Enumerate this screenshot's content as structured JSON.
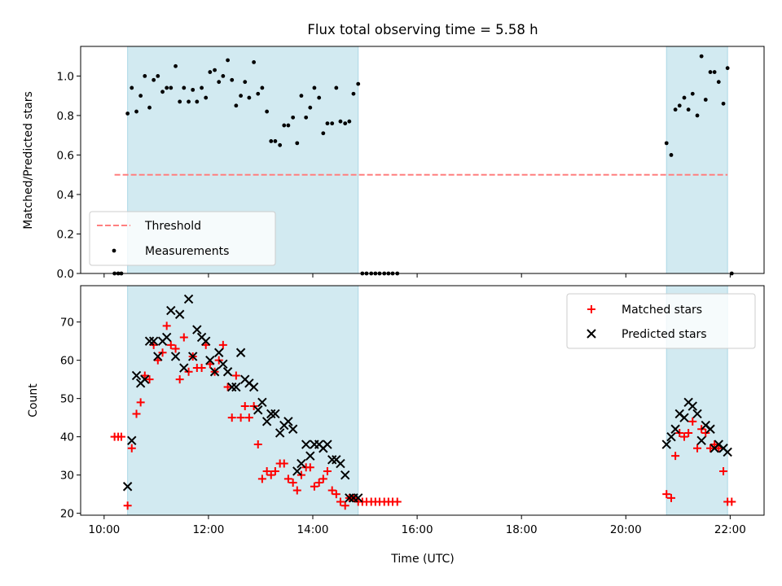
{
  "chart_data": [
    {
      "type": "scatter",
      "title": "Flux total observing time = 5.58 h",
      "ylabel": "Matched/Predicted stars",
      "xlabel": "",
      "xlim": [
        9.55,
        22.65
      ],
      "ylim": [
        0,
        1.15
      ],
      "xticks": [
        10,
        12,
        14,
        16,
        18,
        20,
        22
      ],
      "yticks": [
        {
          "value": 0.0,
          "label": "0.0"
        },
        {
          "value": 0.2,
          "label": "0.2"
        },
        {
          "value": 0.4,
          "label": "0.4"
        },
        {
          "value": 0.6,
          "label": "0.6"
        },
        {
          "value": 0.8,
          "label": "0.8"
        },
        {
          "value": 1.0,
          "label": "1.0"
        }
      ],
      "shaded_intervals": [
        [
          10.45,
          14.87
        ],
        [
          20.78,
          21.95
        ]
      ],
      "threshold": {
        "name": "Threshold",
        "value": 0.5,
        "x_range": [
          10.2,
          21.95
        ]
      },
      "measurements": {
        "name": "Measurements",
        "x": [
          10.2,
          10.27,
          10.33,
          10.45,
          10.53,
          10.62,
          10.7,
          10.78,
          10.87,
          10.95,
          11.03,
          11.12,
          11.2,
          11.28,
          11.37,
          11.45,
          11.53,
          11.62,
          11.7,
          11.78,
          11.87,
          11.95,
          12.03,
          12.12,
          12.2,
          12.28,
          12.37,
          12.45,
          12.53,
          12.62,
          12.7,
          12.78,
          12.87,
          12.95,
          13.03,
          13.12,
          13.2,
          13.28,
          13.37,
          13.45,
          13.53,
          13.62,
          13.7,
          13.78,
          13.87,
          13.95,
          14.03,
          14.12,
          14.2,
          14.28,
          14.37,
          14.45,
          14.53,
          14.62,
          14.7,
          14.78,
          14.87,
          14.95,
          15.03,
          15.12,
          15.2,
          15.28,
          15.37,
          15.45,
          15.53,
          15.62,
          20.78,
          20.87,
          20.95,
          21.03,
          21.12,
          21.2,
          21.28,
          21.37,
          21.45,
          21.53,
          21.62,
          21.7,
          21.78,
          21.87,
          21.95,
          22.03
        ],
        "y": [
          0,
          0,
          0,
          0.81,
          0.94,
          0.82,
          0.9,
          1.0,
          0.84,
          0.98,
          1.0,
          0.92,
          0.94,
          0.94,
          1.05,
          0.87,
          0.94,
          0.87,
          0.93,
          0.87,
          0.94,
          0.89,
          1.02,
          1.03,
          0.97,
          1.0,
          1.08,
          0.98,
          0.85,
          0.9,
          0.97,
          0.89,
          1.07,
          0.91,
          0.94,
          0.82,
          0.67,
          0.67,
          0.65,
          0.75,
          0.75,
          0.79,
          0.66,
          0.9,
          0.79,
          0.84,
          0.94,
          0.89,
          0.71,
          0.76,
          0.76,
          0.94,
          0.77,
          0.76,
          0.77,
          0.91,
          0.96,
          0,
          0,
          0,
          0,
          0,
          0,
          0,
          0,
          0,
          0.66,
          0.6,
          0.83,
          0.85,
          0.89,
          0.83,
          0.91,
          0.8,
          1.1,
          0.88,
          1.02,
          1.02,
          0.97,
          0.86,
          1.04,
          0
        ]
      },
      "legend": {
        "placement": "lower-left",
        "entries": [
          "Threshold",
          "Measurements"
        ]
      }
    },
    {
      "type": "scatter",
      "title": "",
      "xlabel": "Time (UTC)",
      "ylabel": "Count",
      "xlim": [
        9.55,
        22.65
      ],
      "ylim": [
        19.5,
        79.5
      ],
      "xticks": [
        {
          "value": 10,
          "label": "10:00"
        },
        {
          "value": 12,
          "label": "12:00"
        },
        {
          "value": 14,
          "label": "14:00"
        },
        {
          "value": 16,
          "label": "16:00"
        },
        {
          "value": 18,
          "label": "18:00"
        },
        {
          "value": 20,
          "label": "20:00"
        },
        {
          "value": 22,
          "label": "22:00"
        }
      ],
      "yticks": [
        {
          "value": 20,
          "label": "20"
        },
        {
          "value": 30,
          "label": "30"
        },
        {
          "value": 40,
          "label": "40"
        },
        {
          "value": 50,
          "label": "50"
        },
        {
          "value": 60,
          "label": "60"
        },
        {
          "value": 70,
          "label": "70"
        }
      ],
      "shaded_intervals": [
        [
          10.45,
          14.87
        ],
        [
          20.78,
          21.95
        ]
      ],
      "series": [
        {
          "name": "Matched stars",
          "marker": "plus",
          "color": "#ff0000",
          "x": [
            10.2,
            10.27,
            10.33,
            10.45,
            10.53,
            10.62,
            10.7,
            10.78,
            10.87,
            10.95,
            11.03,
            11.12,
            11.2,
            11.28,
            11.37,
            11.45,
            11.53,
            11.62,
            11.7,
            11.78,
            11.87,
            11.95,
            12.03,
            12.12,
            12.2,
            12.28,
            12.37,
            12.45,
            12.53,
            12.62,
            12.7,
            12.78,
            12.87,
            12.95,
            13.03,
            13.12,
            13.2,
            13.28,
            13.37,
            13.45,
            13.53,
            13.62,
            13.7,
            13.78,
            13.87,
            13.95,
            14.03,
            14.12,
            14.2,
            14.28,
            14.37,
            14.45,
            14.53,
            14.62,
            14.7,
            14.78,
            14.87,
            14.95,
            15.03,
            15.12,
            15.2,
            15.28,
            15.37,
            15.45,
            15.53,
            15.62,
            20.78,
            20.87,
            20.95,
            21.03,
            21.12,
            21.2,
            21.28,
            21.37,
            21.45,
            21.53,
            21.62,
            21.7,
            21.78,
            21.87,
            21.95,
            22.03
          ],
          "y": [
            40,
            40,
            40,
            22,
            37,
            46,
            49,
            56,
            55,
            64,
            60,
            62,
            69,
            64,
            63,
            55,
            66,
            57,
            61,
            58,
            58,
            64,
            59,
            57,
            60,
            64,
            53,
            45,
            56,
            45,
            48,
            45,
            48,
            38,
            29,
            31,
            30,
            31,
            33,
            33,
            29,
            28,
            26,
            30,
            32,
            32,
            27,
            28,
            29,
            31,
            26,
            25,
            23,
            22,
            24,
            24,
            23,
            23,
            23,
            23,
            23,
            23,
            23,
            23,
            23,
            23,
            25,
            24,
            35,
            41,
            40,
            41,
            44,
            37,
            42,
            41,
            37,
            38,
            37,
            31,
            23,
            23
          ]
        },
        {
          "name": "Predicted stars",
          "marker": "x",
          "color": "#000000",
          "x": [
            10.45,
            10.53,
            10.62,
            10.7,
            10.78,
            10.87,
            10.95,
            11.03,
            11.12,
            11.2,
            11.28,
            11.37,
            11.45,
            11.53,
            11.62,
            11.7,
            11.78,
            11.87,
            11.95,
            12.03,
            12.12,
            12.2,
            12.28,
            12.37,
            12.45,
            12.53,
            12.62,
            12.7,
            12.78,
            12.87,
            12.95,
            13.03,
            13.12,
            13.2,
            13.28,
            13.37,
            13.45,
            13.53,
            13.62,
            13.7,
            13.78,
            13.87,
            13.95,
            14.03,
            14.12,
            14.2,
            14.28,
            14.37,
            14.45,
            14.53,
            14.62,
            14.7,
            14.78,
            14.87,
            20.78,
            20.87,
            20.95,
            21.03,
            21.12,
            21.2,
            21.28,
            21.37,
            21.45,
            21.53,
            21.62,
            21.7,
            21.78,
            21.87,
            21.95
          ],
          "y": [
            27,
            39,
            56,
            54,
            55,
            65,
            65,
            61,
            65,
            66,
            73,
            61,
            72,
            58,
            76,
            61,
            68,
            66,
            65,
            60,
            57,
            62,
            59,
            57,
            53,
            53,
            62,
            55,
            54,
            53,
            47,
            49,
            44,
            46,
            46,
            41,
            43,
            44,
            42,
            31,
            33,
            38,
            35,
            38,
            38,
            37,
            38,
            34,
            34,
            33,
            30,
            24,
            24,
            24,
            38,
            40,
            42,
            46,
            45,
            49,
            48,
            46,
            39,
            43,
            42,
            37,
            38,
            37,
            36
          ]
        }
      ],
      "legend": {
        "placement": "top-right",
        "entries": [
          "Matched stars",
          "Predicted stars"
        ]
      }
    }
  ]
}
